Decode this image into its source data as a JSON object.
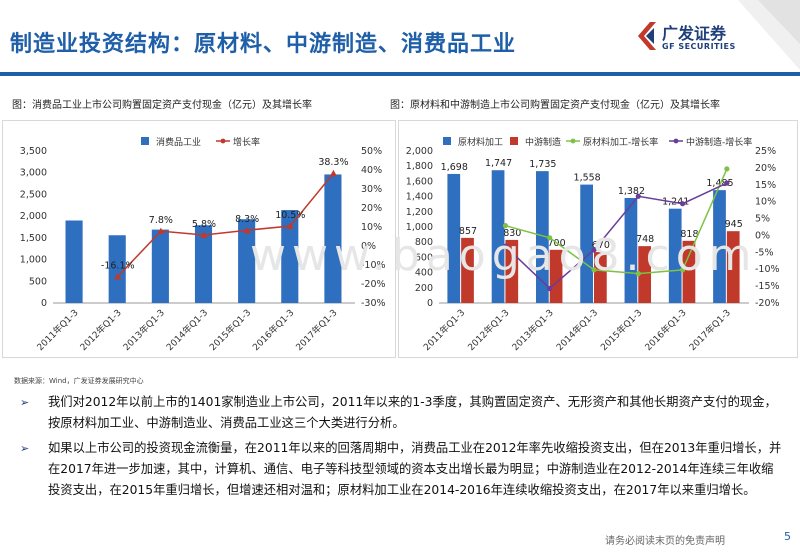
{
  "header": {
    "title": "制造业投资结构：原材料、中游制造、消费品工业",
    "logo_cn": "广发证券",
    "logo_en": "GF SECURITIES"
  },
  "captions": {
    "left": "图：消费品工业上市公司购置固定资产支付现金（亿元）及其增长率",
    "right": "图：原材料和中游制造上市公司购置固定资产支付现金（亿元）及其增长率"
  },
  "watermark": "www.baogao8.com",
  "source": "数据来源：Wind，广发证券发展研究中心",
  "bullets": [
    "我们对2012年以前上市的1401家制造业上市公司，2011年以来的1-3季度，其购置固定资产、无形资产和其他长期资产支付的现金，按原材料加工业、中游制造业、消费品工业这三个大类进行分析。",
    "如果以上市公司的投资现金流衡量，在2011年以来的回落周期中，消费品工业在2012年率先收缩投资支出，但在2013年重归增长，并在2017年进一步加速，其中，计算机、通信、电子等科技型领域的资本支出增长最为明显；中游制造业在2012-2014年连续三年收缩投资支出，在2015年重归增长，但增速还相对温和；原材料加工业在2014-2016年连续收缩投资支出，在2017年以来重归增长。"
  ],
  "footer": "请务必阅读末页的免责声明",
  "page_number": "5",
  "colors": {
    "brand": "#1f5fa8",
    "bar_blue": "#2e6fc0",
    "bar_red": "#c0392b",
    "line_red": "#c0392b",
    "line_green": "#7dc242",
    "line_purple": "#6a3d9a"
  },
  "chart_data": [
    {
      "type": "bar",
      "categories": [
        "2011年Q1-3",
        "2012年Q1-3",
        "2013年Q1-3",
        "2014年Q1-3",
        "2015年Q1-3",
        "2016年Q1-3",
        "2017年Q1-3"
      ],
      "series": [
        {
          "name": "消费品工业",
          "kind": "bar",
          "axis": "left",
          "color": "#2e6fc0",
          "values": [
            1900,
            1560,
            1690,
            1790,
            1930,
            2140,
            2960
          ]
        },
        {
          "name": "增长率",
          "kind": "line",
          "axis": "right",
          "color": "#c0392b",
          "values": [
            null,
            -16.1,
            7.8,
            5.8,
            8.3,
            10.5,
            38.3
          ],
          "labels": [
            "",
            "-16.1%",
            "7.8%",
            "5.8%",
            "8.3%",
            "10.5%",
            "38.3%"
          ]
        }
      ],
      "left_ticks": [
        "0",
        "500",
        "1,000",
        "1,500",
        "2,000",
        "2,500",
        "3,000",
        "3,500"
      ],
      "ylim_left": [
        0,
        3500
      ],
      "right_ticks": [
        "-30%",
        "-20%",
        "-10%",
        "0%",
        "10%",
        "20%",
        "30%",
        "40%",
        "50%"
      ],
      "ylim_right": [
        -30,
        50
      ],
      "legend": "top"
    },
    {
      "type": "bar",
      "categories": [
        "2011年Q1-3",
        "2012年Q1-3",
        "2013年Q1-3",
        "2014年Q1-3",
        "2015年Q1-3",
        "2016年Q1-3",
        "2017年Q1-3"
      ],
      "series": [
        {
          "name": "原材料加工",
          "kind": "bar",
          "axis": "left",
          "color": "#2e6fc0",
          "values": [
            1698,
            1747,
            1735,
            1558,
            1382,
            1241,
            1485
          ],
          "labels": [
            "1,698",
            "1,747",
            "1,735",
            "1,558",
            "1,382",
            "1,241",
            "1,485"
          ]
        },
        {
          "name": "中游制造",
          "kind": "bar",
          "axis": "left",
          "color": "#c0392b",
          "values": [
            857,
            830,
            700,
            670,
            748,
            818,
            945
          ],
          "labels": [
            "857",
            "830",
            "700",
            "670",
            "748",
            "818",
            "945"
          ]
        },
        {
          "name": "原材料加工-增长率",
          "kind": "line",
          "axis": "right",
          "color": "#7dc242",
          "values": [
            null,
            2.9,
            -0.7,
            -10.2,
            -11.3,
            -10.2,
            19.7
          ]
        },
        {
          "name": "中游制造-增长率",
          "kind": "line",
          "axis": "right",
          "color": "#6a3d9a",
          "values": [
            null,
            -3.2,
            -15.7,
            -4.3,
            11.6,
            9.4,
            15.5
          ]
        }
      ],
      "left_ticks": [
        "0",
        "200",
        "400",
        "600",
        "800",
        "1,000",
        "1,200",
        "1,400",
        "1,600",
        "1,800",
        "2,000"
      ],
      "ylim_left": [
        0,
        2000
      ],
      "right_ticks": [
        "-20%",
        "-15%",
        "-10%",
        "-5%",
        "0%",
        "5%",
        "10%",
        "15%",
        "20%",
        "25%"
      ],
      "ylim_right": [
        -20,
        25
      ],
      "legend": "top"
    }
  ]
}
